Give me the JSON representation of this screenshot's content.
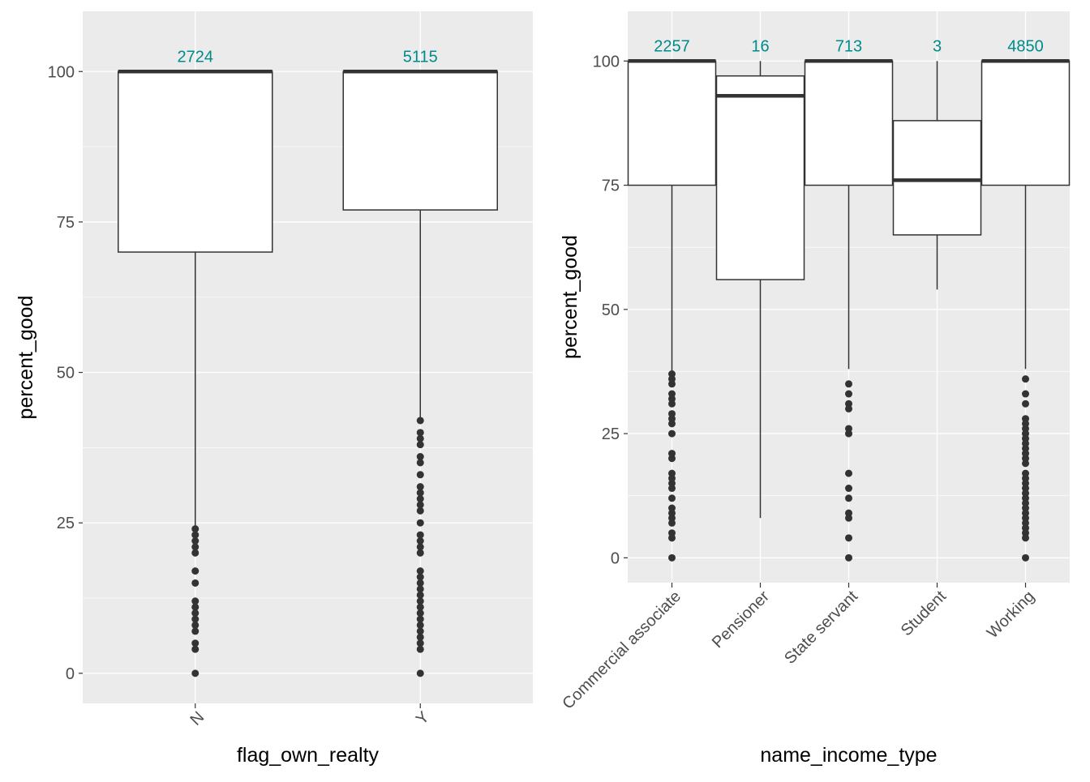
{
  "chart_data": [
    {
      "type": "boxplot",
      "xlabel": "flag_own_realty",
      "ylabel": "percent_good",
      "ylim": [
        -5,
        110
      ],
      "yticks": [
        0,
        25,
        50,
        75,
        100
      ],
      "ytick_labels": [
        "0",
        "25",
        "50",
        "75",
        "100"
      ],
      "categories": [
        "N",
        "Y"
      ],
      "x_tick_rotation": "45deg",
      "grid": true,
      "count_label_color": "#008B8B",
      "boxes": [
        {
          "category": "N",
          "count": "2724",
          "lower_whisker": 24,
          "q1": 70,
          "median": 100,
          "q3": 100,
          "upper_whisker": 100,
          "outliers": [
            0,
            4,
            5,
            7,
            8,
            9,
            10,
            11,
            12,
            15,
            17,
            20,
            21,
            22,
            23,
            24
          ]
        },
        {
          "category": "Y",
          "count": "5115",
          "lower_whisker": 42,
          "q1": 77,
          "median": 100,
          "q3": 100,
          "upper_whisker": 100,
          "outliers": [
            0,
            4,
            5,
            6,
            7,
            8,
            9,
            10,
            11,
            12,
            13,
            14,
            15,
            16,
            17,
            20,
            21,
            22,
            23,
            25,
            27,
            28,
            29,
            30,
            31,
            33,
            35,
            36,
            38,
            39,
            40,
            42
          ]
        }
      ]
    },
    {
      "type": "boxplot",
      "xlabel": "name_income_type",
      "ylabel": "percent_good",
      "ylim": [
        -5,
        110
      ],
      "yticks": [
        0,
        25,
        50,
        75,
        100
      ],
      "ytick_labels": [
        "0",
        "25",
        "50",
        "75",
        "100"
      ],
      "categories": [
        "Commercial associate",
        "Pensioner",
        "State servant",
        "Student",
        "Working"
      ],
      "x_tick_rotation": "45deg",
      "grid": true,
      "count_label_color": "#008B8B",
      "boxes": [
        {
          "category": "Commercial associate",
          "count": "2257",
          "lower_whisker": 37,
          "q1": 75,
          "median": 100,
          "q3": 100,
          "upper_whisker": 100,
          "outliers": [
            0,
            4,
            5,
            7,
            8,
            9,
            10,
            12,
            14,
            15,
            16,
            17,
            20,
            21,
            25,
            27,
            28,
            29,
            31,
            32,
            33,
            35,
            36,
            37
          ]
        },
        {
          "category": "Pensioner",
          "count": "16",
          "lower_whisker": 8,
          "q1": 56,
          "median": 93,
          "q3": 97,
          "upper_whisker": 100,
          "outliers": []
        },
        {
          "category": "State servant",
          "count": "713",
          "lower_whisker": 38,
          "q1": 75,
          "median": 100,
          "q3": 100,
          "upper_whisker": 100,
          "outliers": [
            0,
            4,
            8,
            9,
            12,
            14,
            17,
            25,
            26,
            30,
            31,
            33,
            35
          ]
        },
        {
          "category": "Student",
          "count": "3",
          "lower_whisker": 54,
          "q1": 65,
          "median": 76,
          "q3": 88,
          "upper_whisker": 100,
          "outliers": []
        },
        {
          "category": "Working",
          "count": "4850",
          "lower_whisker": 38,
          "q1": 75,
          "median": 100,
          "q3": 100,
          "upper_whisker": 100,
          "outliers": [
            0,
            4,
            5,
            6,
            7,
            8,
            9,
            10,
            11,
            12,
            13,
            14,
            15,
            16,
            17,
            19,
            20,
            21,
            22,
            23,
            24,
            25,
            26,
            27,
            28,
            31,
            33,
            36
          ]
        }
      ]
    }
  ]
}
